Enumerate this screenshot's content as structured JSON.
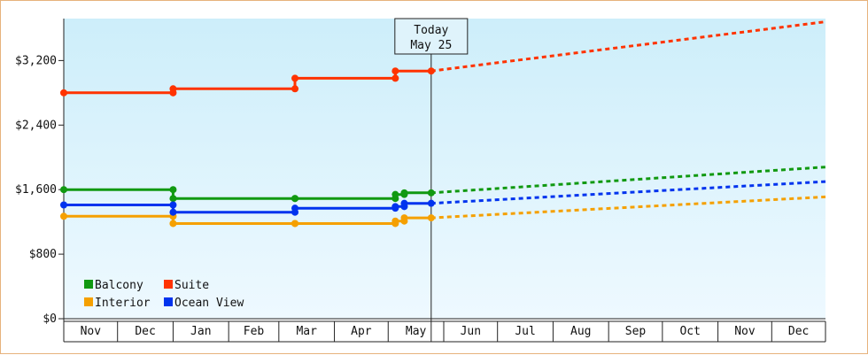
{
  "chart_data": {
    "type": "line",
    "title": "",
    "xlabel": "",
    "ylabel": "",
    "x_tick_labels": [
      "Nov",
      "Dec",
      "Jan",
      "Feb",
      "Mar",
      "Apr",
      "May",
      "Jun",
      "Jul",
      "Aug",
      "Sep",
      "Oct",
      "Nov",
      "Dec"
    ],
    "x_range": [
      "2024-11-01",
      "2025-12-31"
    ],
    "y_ticks": [
      0,
      800,
      1600,
      2400,
      3200
    ],
    "y_tick_labels": [
      "$0",
      "$800",
      "$1,600",
      "$2,400",
      "$3,200"
    ],
    "ylim": [
      0,
      3720
    ],
    "grid": false,
    "legend_position": "bottom-left",
    "today": {
      "label_line1": "Today",
      "label_line2": "May 25",
      "date": "2025-05-25"
    },
    "series": [
      {
        "name": "Balcony",
        "color": "#119911",
        "history": [
          {
            "date": "2024-11-01",
            "value": 1600
          },
          {
            "date": "2025-01-01",
            "value": 1600
          },
          {
            "date": "2025-01-01",
            "value": 1490
          },
          {
            "date": "2025-03-10",
            "value": 1490
          },
          {
            "date": "2025-03-10",
            "value": 1490
          },
          {
            "date": "2025-05-05",
            "value": 1490
          },
          {
            "date": "2025-05-05",
            "value": 1540
          },
          {
            "date": "2025-05-10",
            "value": 1540
          },
          {
            "date": "2025-05-10",
            "value": 1560
          },
          {
            "date": "2025-05-25",
            "value": 1560
          }
        ],
        "forecast": [
          {
            "date": "2025-05-25",
            "value": 1560
          },
          {
            "date": "2025-12-31",
            "value": 1880
          }
        ]
      },
      {
        "name": "Suite",
        "color": "#ff3300",
        "history": [
          {
            "date": "2024-11-01",
            "value": 2800
          },
          {
            "date": "2025-01-01",
            "value": 2800
          },
          {
            "date": "2025-01-01",
            "value": 2850
          },
          {
            "date": "2025-03-10",
            "value": 2850
          },
          {
            "date": "2025-03-10",
            "value": 2980
          },
          {
            "date": "2025-05-05",
            "value": 2980
          },
          {
            "date": "2025-05-05",
            "value": 3070
          },
          {
            "date": "2025-05-25",
            "value": 3070
          }
        ],
        "forecast": [
          {
            "date": "2025-05-25",
            "value": 3070
          },
          {
            "date": "2025-12-31",
            "value": 3680
          }
        ]
      },
      {
        "name": "Interior",
        "color": "#f5a000",
        "history": [
          {
            "date": "2024-11-01",
            "value": 1270
          },
          {
            "date": "2025-01-01",
            "value": 1270
          },
          {
            "date": "2025-01-01",
            "value": 1180
          },
          {
            "date": "2025-03-10",
            "value": 1180
          },
          {
            "date": "2025-03-10",
            "value": 1180
          },
          {
            "date": "2025-05-05",
            "value": 1180
          },
          {
            "date": "2025-05-05",
            "value": 1210
          },
          {
            "date": "2025-05-10",
            "value": 1210
          },
          {
            "date": "2025-05-10",
            "value": 1250
          },
          {
            "date": "2025-05-25",
            "value": 1250
          }
        ],
        "forecast": [
          {
            "date": "2025-05-25",
            "value": 1250
          },
          {
            "date": "2025-12-31",
            "value": 1510
          }
        ]
      },
      {
        "name": "Ocean View",
        "color": "#0033ee",
        "history": [
          {
            "date": "2024-11-01",
            "value": 1410
          },
          {
            "date": "2025-01-01",
            "value": 1410
          },
          {
            "date": "2025-01-01",
            "value": 1320
          },
          {
            "date": "2025-03-10",
            "value": 1320
          },
          {
            "date": "2025-03-10",
            "value": 1370
          },
          {
            "date": "2025-05-05",
            "value": 1370
          },
          {
            "date": "2025-05-05",
            "value": 1390
          },
          {
            "date": "2025-05-10",
            "value": 1390
          },
          {
            "date": "2025-05-10",
            "value": 1430
          },
          {
            "date": "2025-05-25",
            "value": 1430
          }
        ],
        "forecast": [
          {
            "date": "2025-05-25",
            "value": 1430
          },
          {
            "date": "2025-12-31",
            "value": 1700
          }
        ]
      }
    ],
    "colors": {
      "background_top": "#cdeefa",
      "background_bottom": "#eef9ff",
      "axis": "#222222",
      "frame": "#e7b27c"
    }
  }
}
